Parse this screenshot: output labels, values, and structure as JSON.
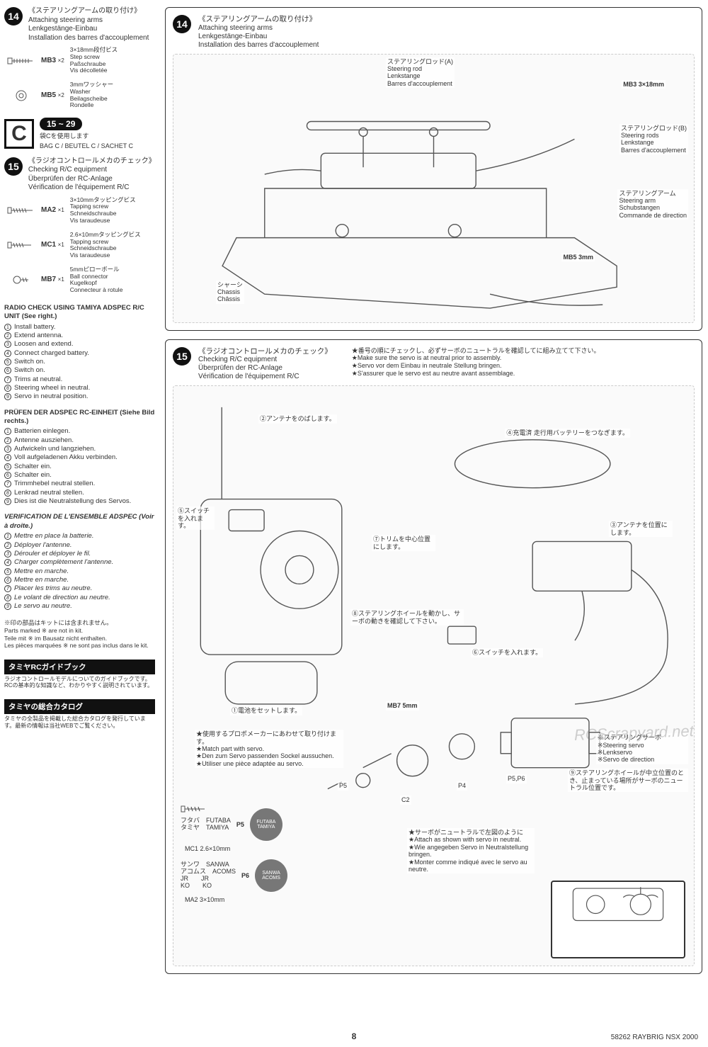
{
  "page": {
    "number": "8",
    "model": "58262 RAYBRIG NSX 2000"
  },
  "watermark": "RCScrapyard.net",
  "left": {
    "step14": {
      "num": "14",
      "jp": "《ステアリングアームの取り付け》",
      "en": "Attaching steering arms",
      "de": "Lenkgestänge-Einbau",
      "fr": "Installation des barres d'accouplement",
      "parts": {
        "mb3": {
          "code": "MB3",
          "qty": "×2",
          "spec": "3×18mm段付ビス",
          "en": "Step screw",
          "de": "Paßschraube",
          "fr": "Vis décolletée"
        },
        "mb5": {
          "code": "MB5",
          "qty": "×2",
          "spec": "3mmワッシャー",
          "en": "Washer",
          "de": "Beilagscheibe",
          "fr": "Rondelle"
        }
      }
    },
    "bag": {
      "letter": "C",
      "range": "15 ~ 29",
      "jp": "袋Cを使用します",
      "line": "BAG C / BEUTEL C / SACHET C"
    },
    "step15": {
      "num": "15",
      "jp": "《ラジオコントロールメカのチェック》",
      "en": "Checking R/C equipment",
      "de": "Überprüfen der RC-Anlage",
      "fr": "Vérification de l'équipement R/C",
      "parts": {
        "ma2": {
          "code": "MA2",
          "qty": "×1",
          "spec": "3×10mmタッピングビス",
          "en": "Tapping screw",
          "de": "Schneidschraube",
          "fr": "Vis taraudeuse"
        },
        "mc1": {
          "code": "MC1",
          "qty": "×1",
          "spec": "2.6×10mmタッピングビス",
          "en": "Tapping screw",
          "de": "Schneidschraube",
          "fr": "Vis taraudeuse"
        },
        "mb7": {
          "code": "MB7",
          "qty": "×1",
          "spec": "5mmピローボール",
          "en": "Ball connector",
          "de": "Kugelkopf",
          "fr": "Connecteur à rotule"
        }
      }
    },
    "radioEn": {
      "hdr": "RADIO CHECK USING TAMIYA ADSPEC R/C UNIT (See right.)",
      "items": [
        "Install battery.",
        "Extend antenna.",
        "Loosen and extend.",
        "Connect charged battery.",
        "Switch on.",
        "Switch on.",
        "Trims at neutral.",
        "Steering wheel in neutral.",
        "Servo in neutral position."
      ]
    },
    "radioDe": {
      "hdr": "PRÜFEN DER ADSPEC RC-EINHEIT (Siehe Bild rechts.)",
      "items": [
        "Batterien einlegen.",
        "Antenne ausziehen.",
        "Aufwickeln und langziehen.",
        "Voll aufgeladenen Akku verbinden.",
        "Schalter ein.",
        "Schalter ein.",
        "Trimmhebel neutral stellen.",
        "Lenkrad neutral stellen.",
        "Dies ist die Neutralstellung des Servos."
      ]
    },
    "radioFr": {
      "hdr": "VERIFICATION DE L'ENSEMBLE ADSPEC (Voir à droite.)",
      "items": [
        "Mettre en place la batterie.",
        "Déployer l'antenne.",
        "Dérouler et déployer le fil.",
        "Charger complètement l'antenne.",
        "Mettre en marche.",
        "Mettre en marche.",
        "Placer les trims au neutre.",
        "Le volant de direction au neutre.",
        "Le servo au neutre."
      ]
    },
    "kitNote": {
      "jp": "※印の部品はキットには含まれません。",
      "en": "Parts marked ※ are not in kit.",
      "de": "Teile mit ※ im Bausatz nicht enthalten.",
      "fr": "Les pièces marquées ※ ne sont pas inclus dans le kit."
    },
    "footer1": {
      "title": "タミヤRCガイドブック",
      "txt": "ラジオコントロールモデルについてのガイドブックです。RCの基本的な知識など、わかりやすく説明されています。"
    },
    "footer2": {
      "title": "タミヤの総合カタログ",
      "txt": "タミヤの全製品を掲載した総合カタログを発行しています。最新の情報は当社WEBでご覧ください。"
    }
  },
  "panel14": {
    "num": "14",
    "jp": "《ステアリングアームの取り付け》",
    "en": "Attaching steering arms",
    "de": "Lenkgestänge-Einbau",
    "fr": "Installation des barres d'accouplement",
    "callouts": {
      "rodA": {
        "jp": "ステアリングロッド(A)",
        "en": "Steering rod",
        "de": "Lenkstange",
        "fr": "Barres d'accouplement"
      },
      "mb3": "MB3 3×18mm",
      "rodB": {
        "jp": "ステアリングロッド(B)",
        "en": "Steering rods",
        "de": "Lenkstange",
        "fr": "Barres d'accouplement"
      },
      "arm": {
        "jp": "ステアリングアーム",
        "en": "Steering arm",
        "de": "Schubstangen",
        "fr": "Commande de direction"
      },
      "mb5": "MB5 3mm",
      "chassis": {
        "jp": "シャーシ",
        "en": "Chassis",
        "fr": "Châssis"
      }
    }
  },
  "panel15": {
    "num": "15",
    "jp": "《ラジオコントロールメカのチェック》",
    "en": "Checking R/C equipment",
    "de": "Überprüfen der RC-Anlage",
    "fr": "Vérification de l'équipement R/C",
    "starNoteJp": "★番号の順にチェックし、必ずサーボのニュートラルを確認してに組み立てて下さい。",
    "starNotes": [
      "★Make sure the servo is at neutral prior to assembly.",
      "★Servo vor dem Einbau in neutrale Stellung bringen.",
      "★S'assurer que le servo est au neutre avant assemblage."
    ],
    "numbered": {
      "n1": "①電池をセットします。",
      "n2": "②アンテナをのばします。",
      "n3": "③アンテナを位置にします。",
      "n4": "④充電済 走行用バッテリーをつなぎます。",
      "n5": "⑤スイッチを入れます。",
      "n6": "⑥スイッチを入れます。",
      "n7": "⑦トリムを中心位置にします。",
      "n8": "⑧ステアリングホイールを動かし、サーボの動きを確認して下さい。",
      "n9": "⑨ステアリングホイールが中立位置のとき、止まっている場所がサーボのニュートラル位置です。"
    },
    "mb7": "MB7 5mm",
    "servo": {
      "jp": "※ステアリングサーボ",
      "en": "※Steering servo",
      "de": "※Lenkservo",
      "fr": "※Servo de direction"
    },
    "matchJp": "★使用するプロポメーカーにあわせて取り付けます。",
    "match": [
      "★Match part with servo.",
      "★Den zum Servo passenden Sockel aussuchen.",
      "★Utiliser une pièce adaptée au servo."
    ],
    "brand1": {
      "jp1": "フタバ",
      "jp2": "タミヤ",
      "en1": "FUTABA",
      "en2": "TAMIYA",
      "label": "P5",
      "screw": "MC1 2.6×10mm",
      "circle": "FUTABA  TAMIYA"
    },
    "brand2": {
      "jp1": "サンワ",
      "jp2": "アコムス",
      "jp3": "JR",
      "jp4": "KO",
      "en1": "SANWA",
      "en2": "ACOMS",
      "en3": "JR",
      "en4": "KO",
      "label": "P6",
      "screw": "MA2 3×10mm",
      "circle": "SANWA  ACOMS"
    },
    "chain": {
      "p5": "P5",
      "c2": "C2",
      "p4": "P4",
      "p56": "P5,P6"
    },
    "neutralJp": "★サーボがニュートラルで左図のように",
    "neutral": [
      "★Attach as shown with servo in neutral.",
      "★Wie angegeben Servo in Neutralstellung bringen.",
      "★Monter comme indiqué avec le servo au neutre."
    ]
  }
}
